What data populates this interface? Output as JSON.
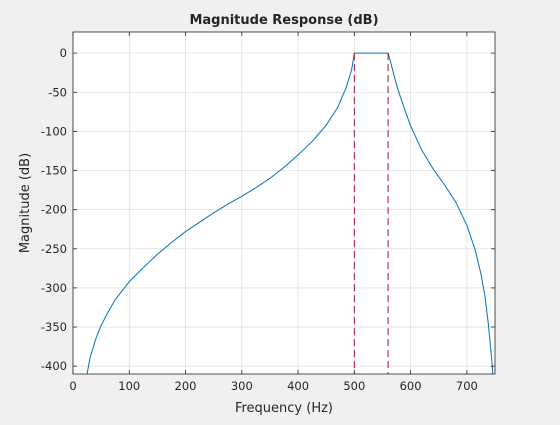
{
  "chart_data": {
    "type": "line",
    "title": "Magnitude Response (dB)",
    "xlabel": "Frequency (Hz)",
    "ylabel": "Magnitude (dB)",
    "xlim": [
      0,
      750
    ],
    "ylim": [
      -410,
      27
    ],
    "grid": true,
    "x_ticks": [
      0,
      100,
      200,
      300,
      400,
      500,
      600,
      700
    ],
    "y_ticks": [
      0,
      -50,
      -100,
      -150,
      -200,
      -250,
      -300,
      -350,
      -400
    ],
    "series": [
      {
        "color": "#0072BD",
        "points": [
          [
            25,
            -410
          ],
          [
            30,
            -390
          ],
          [
            40,
            -366
          ],
          [
            50,
            -348
          ],
          [
            60,
            -334
          ],
          [
            75,
            -315
          ],
          [
            100,
            -292
          ],
          [
            125,
            -274
          ],
          [
            150,
            -257
          ],
          [
            175,
            -242
          ],
          [
            200,
            -228
          ],
          [
            225,
            -216
          ],
          [
            250,
            -204
          ],
          [
            275,
            -193
          ],
          [
            300,
            -183
          ],
          [
            325,
            -172
          ],
          [
            350,
            -160
          ],
          [
            375,
            -146
          ],
          [
            400,
            -130
          ],
          [
            425,
            -113
          ],
          [
            450,
            -92
          ],
          [
            470,
            -70
          ],
          [
            485,
            -45
          ],
          [
            495,
            -22
          ],
          [
            500,
            0
          ],
          [
            510,
            0
          ],
          [
            520,
            0
          ],
          [
            530,
            0
          ],
          [
            540,
            0
          ],
          [
            550,
            0
          ],
          [
            560,
            0
          ],
          [
            565,
            -13
          ],
          [
            570,
            -27
          ],
          [
            575,
            -40
          ],
          [
            580,
            -52
          ],
          [
            590,
            -73
          ],
          [
            600,
            -93
          ],
          [
            620,
            -124
          ],
          [
            640,
            -148
          ],
          [
            660,
            -168
          ],
          [
            680,
            -190
          ],
          [
            700,
            -220
          ],
          [
            715,
            -252
          ],
          [
            725,
            -282
          ],
          [
            732,
            -310
          ],
          [
            738,
            -345
          ],
          [
            742,
            -375
          ],
          [
            745,
            -398
          ],
          [
            746,
            -410
          ]
        ]
      }
    ],
    "markers": [
      {
        "x": 500,
        "color": "#A2142F",
        "style": "dashed"
      },
      {
        "x": 560,
        "color": "#A2142F",
        "style": "dashed"
      }
    ]
  }
}
